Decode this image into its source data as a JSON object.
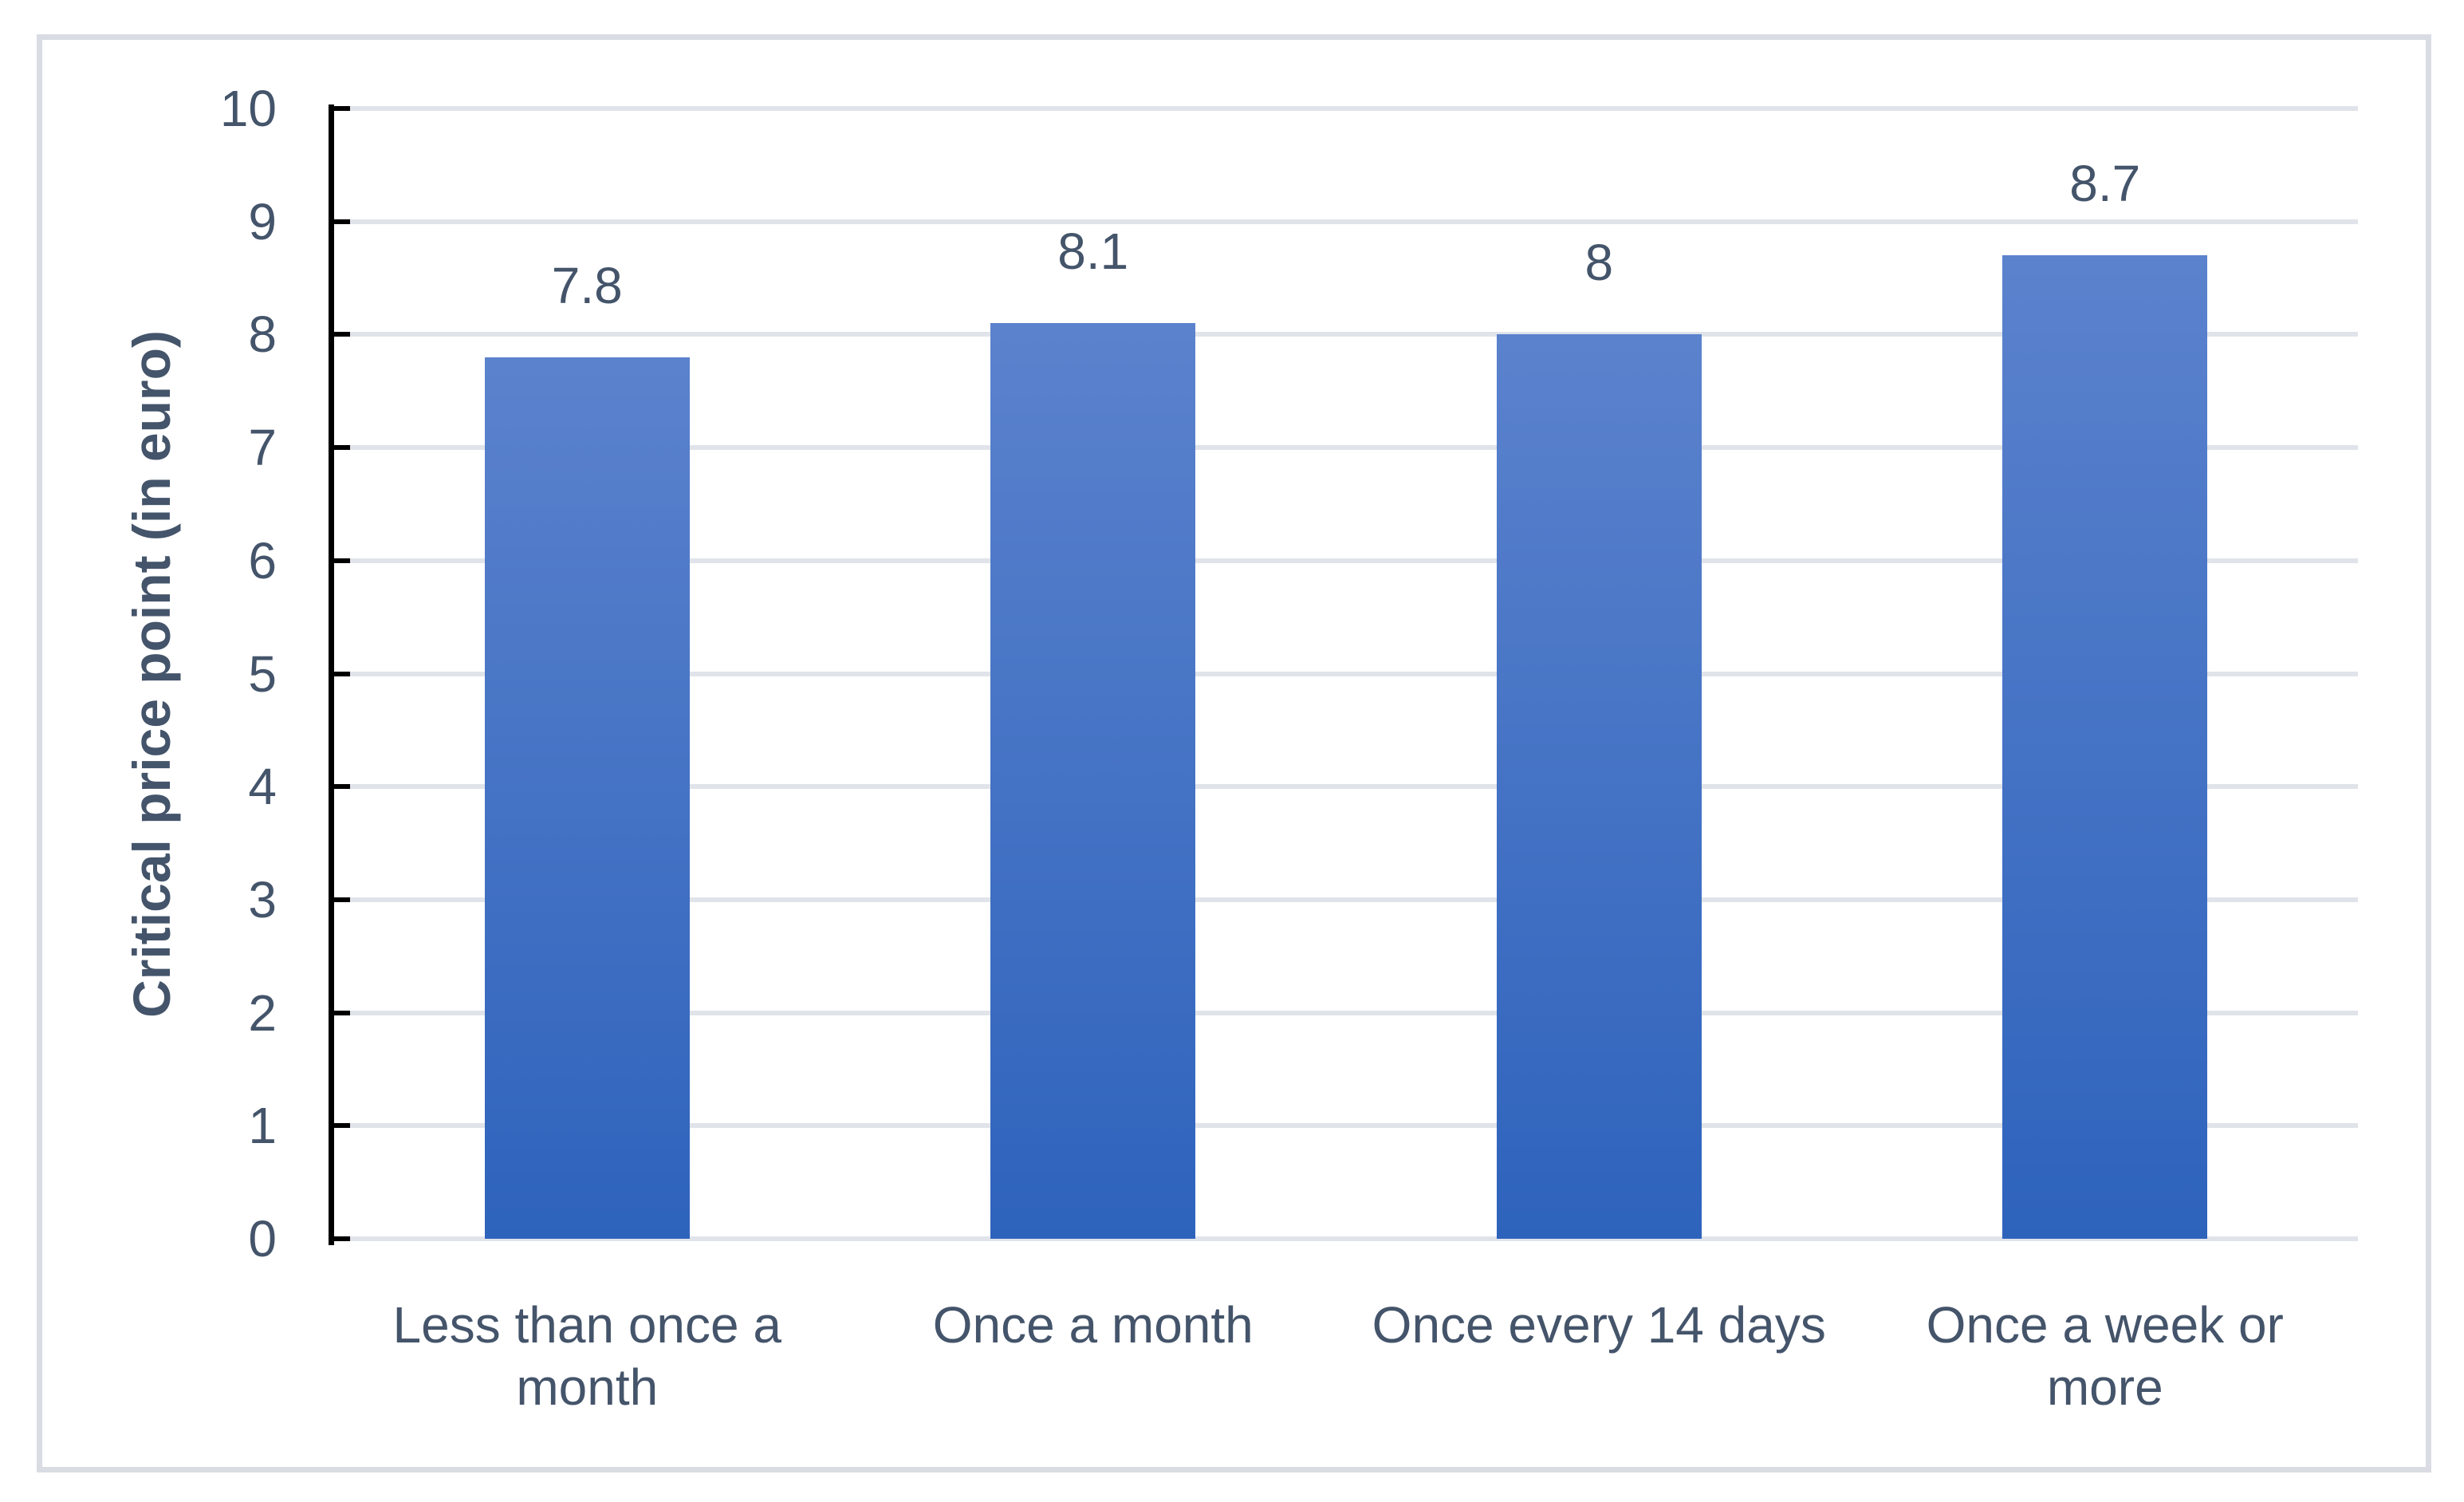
{
  "chart_data": {
    "type": "bar",
    "categories": [
      "Less than once a month",
      "Once a month",
      "Once every 14 days",
      "Once a week or more"
    ],
    "values": [
      7.8,
      8.1,
      8,
      8.7
    ],
    "data_labels": [
      "7.8",
      "8.1",
      "8",
      "8.7"
    ],
    "category_display": [
      "Less than once a\nmonth",
      "Once a month",
      "Once every 14 days",
      "Once a week or\nmore"
    ],
    "title": "",
    "xlabel": "",
    "ylabel": "Critical price point (in euro)",
    "ylim": [
      0,
      10
    ],
    "yticks": [
      0,
      1,
      2,
      3,
      4,
      5,
      6,
      7,
      8,
      9,
      10
    ],
    "grid": true,
    "legend": false
  },
  "colors": {
    "bar_gradient_top": "#5B82CD",
    "bar_gradient_bottom": "#2E63BC",
    "gridline": "#E0E4EA",
    "axis_line": "#000000",
    "text": "#44546A",
    "chart_border": "#D9DCE3",
    "background": "#FFFFFF"
  }
}
